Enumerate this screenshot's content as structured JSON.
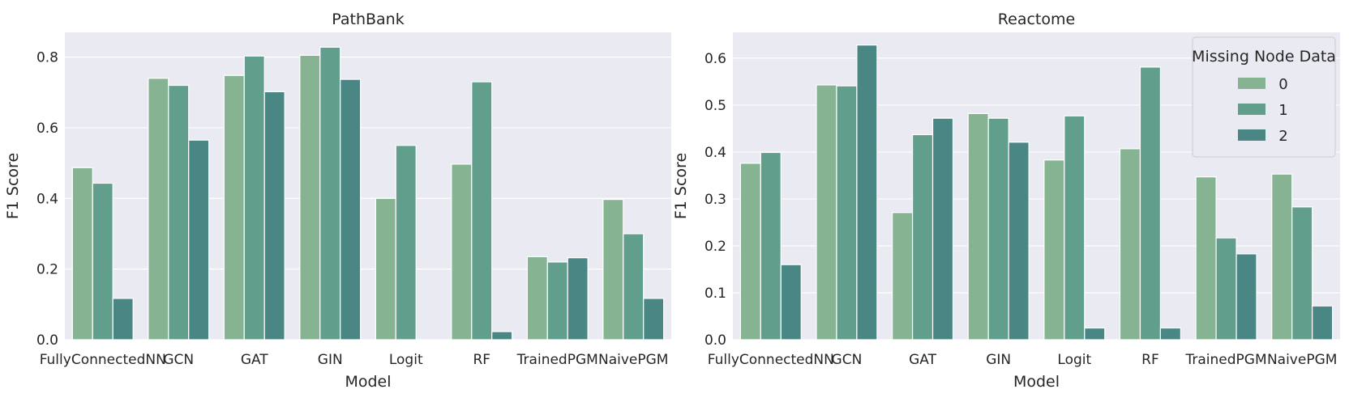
{
  "chart_data": [
    {
      "type": "bar",
      "title": "PathBank",
      "xlabel": "Model",
      "ylabel": "F1 Score",
      "categories": [
        "FullyConnectedNN",
        "GCN",
        "GAT",
        "GIN",
        "Logit",
        "RF",
        "TrainedPGM",
        "NaivePGM"
      ],
      "ylim": [
        0,
        0.87
      ],
      "yticks": [
        "0.0",
        "0.2",
        "0.4",
        "0.6",
        "0.8"
      ],
      "grid": true,
      "series": [
        {
          "name": "0",
          "color": "#86b392",
          "values": [
            0.487,
            0.74,
            0.748,
            0.805,
            0.4,
            0.497,
            0.235,
            0.397
          ]
        },
        {
          "name": "1",
          "color": "#629e8c",
          "values": [
            0.443,
            0.72,
            0.803,
            0.828,
            0.55,
            0.73,
            0.22,
            0.3
          ]
        },
        {
          "name": "2",
          "color": "#4a8684",
          "values": [
            0.117,
            0.565,
            0.702,
            0.737,
            0.0,
            0.023,
            0.232,
            0.117
          ]
        }
      ]
    },
    {
      "type": "bar",
      "title": "Reactome",
      "xlabel": "Model",
      "ylabel": "F1 Score",
      "categories": [
        "FullyConnectedNN",
        "GCN",
        "GAT",
        "GIN",
        "Logit",
        "RF",
        "TrainedPGM",
        "NaivePGM"
      ],
      "ylim": [
        0,
        0.655
      ],
      "yticks": [
        "0.0",
        "0.1",
        "0.2",
        "0.3",
        "0.4",
        "0.5",
        "0.6"
      ],
      "grid": true,
      "legend": {
        "title": "Missing Node Data",
        "placement": "top-right"
      },
      "series": [
        {
          "name": "0",
          "color": "#86b392",
          "values": [
            0.376,
            0.543,
            0.271,
            0.482,
            0.383,
            0.407,
            0.347,
            0.353
          ]
        },
        {
          "name": "1",
          "color": "#629e8c",
          "values": [
            0.399,
            0.541,
            0.437,
            0.472,
            0.477,
            0.581,
            0.217,
            0.283
          ]
        },
        {
          "name": "2",
          "color": "#4a8684",
          "values": [
            0.16,
            0.628,
            0.472,
            0.421,
            0.025,
            0.025,
            0.183,
            0.072
          ]
        }
      ]
    }
  ]
}
